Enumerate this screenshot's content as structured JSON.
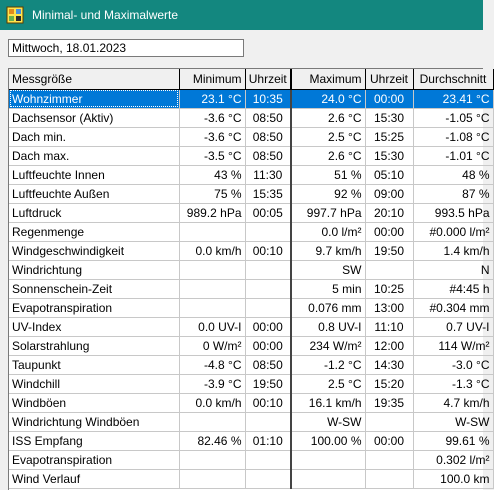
{
  "window": {
    "title": "Minimal- und Maximalwerte"
  },
  "date_field": {
    "value": "Mittwoch, 18.01.2023"
  },
  "table": {
    "headers": [
      "Messgröße",
      "Minimum",
      "Uhrzeit",
      "Maximum",
      "Uhrzeit",
      "Durchschnitt"
    ],
    "rows": [
      [
        "Wohnzimmer",
        "23.1 °C",
        "10:35",
        "24.0 °C",
        "00:00",
        "23.41 °C"
      ],
      [
        "Dachsensor (Aktiv)",
        "-3.6 °C",
        "08:50",
        "2.6 °C",
        "15:30",
        "-1.05 °C"
      ],
      [
        "Dach min.",
        "-3.6 °C",
        "08:50",
        "2.5 °C",
        "15:25",
        "-1.08 °C"
      ],
      [
        "Dach max.",
        "-3.5 °C",
        "08:50",
        "2.6 °C",
        "15:30",
        "-1.01 °C"
      ],
      [
        "Luftfeuchte Innen",
        "43 %",
        "11:30",
        "51 %",
        "05:10",
        "48 %"
      ],
      [
        "Luftfeuchte Außen",
        "75 %",
        "15:35",
        "92 %",
        "09:00",
        "87 %"
      ],
      [
        "Luftdruck",
        "989.2 hPa",
        "00:05",
        "997.7 hPa",
        "20:10",
        "993.5 hPa"
      ],
      [
        "Regenmenge",
        "",
        "",
        "0.0 l/m²",
        "00:00",
        "#0.000 l/m²"
      ],
      [
        "Windgeschwindigkeit",
        "0.0 km/h",
        "00:10",
        "9.7 km/h",
        "19:50",
        "1.4 km/h"
      ],
      [
        "Windrichtung",
        "",
        "",
        "SW",
        "",
        "N"
      ],
      [
        "Sonnenschein-Zeit",
        "",
        "",
        "5 min",
        "10:25",
        "#4:45 h"
      ],
      [
        "Evapotranspiration",
        "",
        "",
        "0.076 mm",
        "13:00",
        "#0.304 mm"
      ],
      [
        "UV-Index",
        "0.0 UV-I",
        "00:00",
        "0.8 UV-I",
        "11:10",
        "0.7 UV-I"
      ],
      [
        "Solarstrahlung",
        "0 W/m²",
        "00:00",
        "234 W/m²",
        "12:00",
        "114 W/m²"
      ],
      [
        "Taupunkt",
        "-4.8 °C",
        "08:50",
        "-1.2 °C",
        "14:30",
        "-3.0 °C"
      ],
      [
        "Windchill",
        "-3.9 °C",
        "19:50",
        "2.5 °C",
        "15:20",
        "-1.3 °C"
      ],
      [
        "Windböen",
        "0.0 km/h",
        "00:10",
        "16.1 km/h",
        "19:35",
        "4.7 km/h"
      ],
      [
        "Windrichtung Windböen",
        "",
        "",
        "W-SW",
        "",
        "W-SW"
      ],
      [
        "ISS Empfang",
        "82.46 %",
        "01:10",
        "100.00 %",
        "00:00",
        "99.61 %"
      ],
      [
        "Evapotranspiration",
        "",
        "",
        "",
        "",
        "0.302 l/m²"
      ],
      [
        "Wind Verlauf",
        "",
        "",
        "",
        "",
        "100.0 km"
      ]
    ],
    "selected_row": 0
  },
  "colors": {
    "titlebar": "#13877f",
    "selection": "#0078d7"
  },
  "icons": {
    "app": "weather-app-icon"
  }
}
